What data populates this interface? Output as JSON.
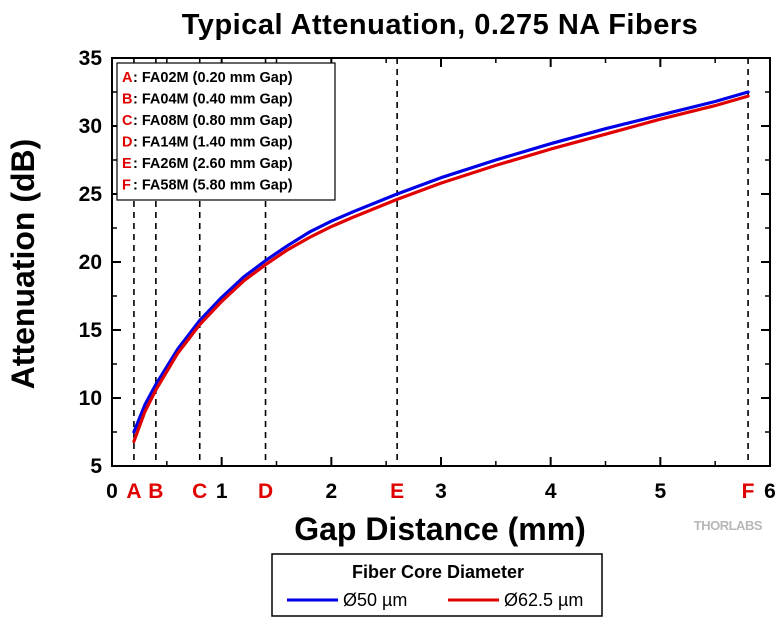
{
  "chart_data": {
    "type": "line",
    "title": "Typical Attenuation, 0.275 NA Fibers",
    "xlabel": "Gap Distance (mm)",
    "ylabel": "Attenuation (dB)",
    "xlim": [
      0,
      6
    ],
    "ylim": [
      5,
      35
    ],
    "x_ticks": [
      "0",
      "1",
      "2",
      "3",
      "4",
      "5",
      "6"
    ],
    "y_ticks": [
      "5",
      "10",
      "15",
      "20",
      "25",
      "30",
      "35"
    ],
    "grid": false,
    "markers": [
      {
        "letter": "A",
        "x": 0.2,
        "fiber": "FA02M (0.20 mm Gap)"
      },
      {
        "letter": "B",
        "x": 0.4,
        "fiber": "FA04M (0.40 mm Gap)"
      },
      {
        "letter": "C",
        "x": 0.8,
        "fiber": "FA08M (0.80 mm Gap)"
      },
      {
        "letter": "D",
        "x": 1.4,
        "fiber": "FA14M (1.40 mm Gap)"
      },
      {
        "letter": "E",
        "x": 2.6,
        "fiber": "FA26M (2.60 mm Gap)"
      },
      {
        "letter": "F",
        "x": 5.8,
        "fiber": "FA58M (5.80 mm Gap)"
      }
    ],
    "legend": {
      "title": "Fiber Core Diameter",
      "placement": "bottom-center"
    },
    "series": [
      {
        "name": "Ø50 µm",
        "color": "#0000e6",
        "x": [
          0.2,
          0.3,
          0.4,
          0.6,
          0.8,
          1.0,
          1.2,
          1.4,
          1.6,
          1.8,
          2.0,
          2.2,
          2.6,
          3.0,
          3.5,
          4.0,
          4.5,
          5.0,
          5.5,
          5.8
        ],
        "y": [
          7.5,
          9.5,
          11.0,
          13.6,
          15.7,
          17.4,
          18.9,
          20.1,
          21.2,
          22.2,
          23.0,
          23.7,
          25.0,
          26.2,
          27.5,
          28.7,
          29.8,
          30.8,
          31.8,
          32.5
        ]
      },
      {
        "name": "Ø62.5 µm",
        "color": "#e00000",
        "x": [
          0.2,
          0.3,
          0.4,
          0.6,
          0.8,
          1.0,
          1.2,
          1.4,
          1.6,
          1.8,
          2.0,
          2.2,
          2.6,
          3.0,
          3.5,
          4.0,
          4.5,
          5.0,
          5.5,
          5.8
        ],
        "y": [
          6.8,
          9.0,
          10.6,
          13.3,
          15.4,
          17.1,
          18.6,
          19.8,
          20.9,
          21.8,
          22.6,
          23.3,
          24.6,
          25.8,
          27.1,
          28.3,
          29.4,
          30.5,
          31.5,
          32.2
        ]
      }
    ]
  },
  "brand": "THORLABS"
}
